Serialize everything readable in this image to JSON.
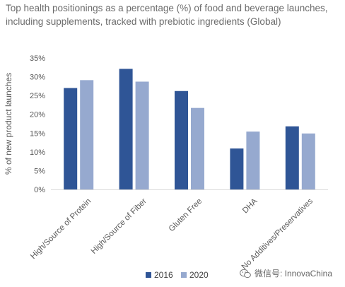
{
  "chart_data": {
    "type": "bar",
    "title": "Top health positionings as a percentage (%) of food and beverage launches, including supplements, tracked with prebiotic ingredients (Global)",
    "ylabel": "% of new product launches",
    "xlabel": "",
    "categories": [
      "High/Source of Protein",
      "High/Source of Fiber",
      "Gluten Free",
      "DHA",
      "No Additives/Preservatives"
    ],
    "series": [
      {
        "name": "2016",
        "color": "#2f5596",
        "values": [
          27.0,
          32.1,
          26.2,
          10.9,
          16.8
        ]
      },
      {
        "name": "2020",
        "color": "#96a9cf",
        "values": [
          29.1,
          28.7,
          21.7,
          15.4,
          14.9
        ]
      }
    ],
    "ylim": [
      0,
      35
    ],
    "yticks": [
      "0%",
      "5%",
      "10%",
      "15%",
      "20%",
      "25%",
      "30%",
      "35%"
    ],
    "grid": false,
    "legend_position": "bottom-center"
  },
  "watermark": {
    "text": "微信号: InnovaChina",
    "icon": "wechat-icon"
  }
}
